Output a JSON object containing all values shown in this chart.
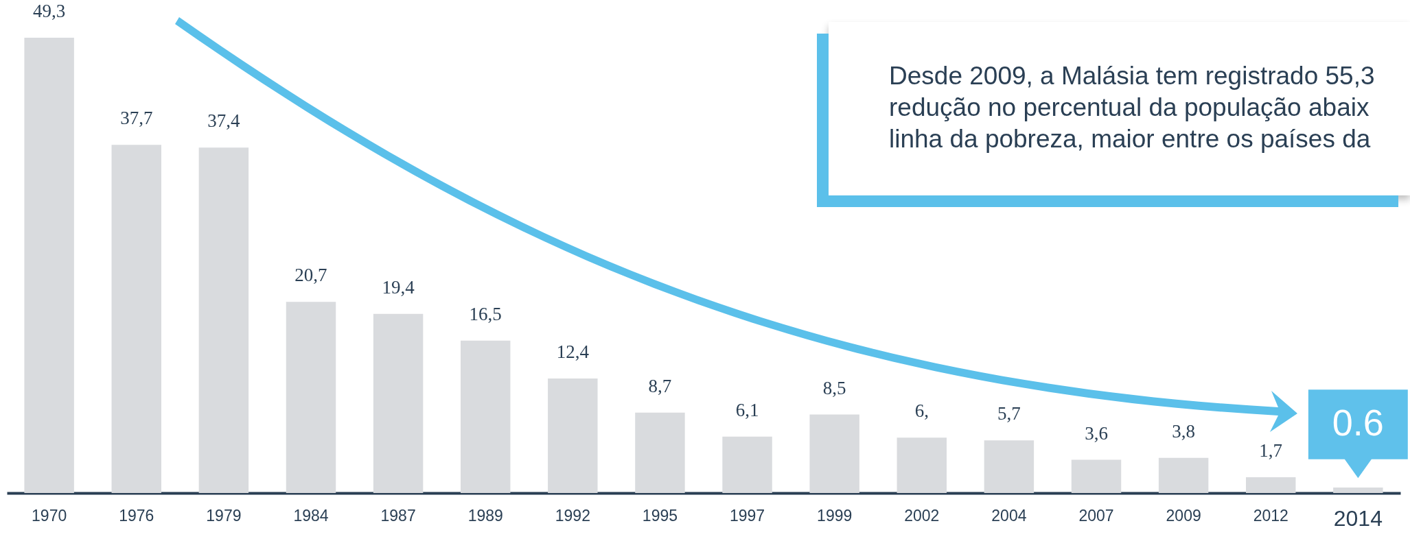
{
  "chart_data": {
    "type": "bar",
    "categories": [
      "1970",
      "1976",
      "1979",
      "1984",
      "1987",
      "1989",
      "1992",
      "1995",
      "1997",
      "1999",
      "2002",
      "2004",
      "2007",
      "2009",
      "2012",
      "2014"
    ],
    "values": [
      49.3,
      37.7,
      37.4,
      20.7,
      19.4,
      16.5,
      12.4,
      8.7,
      6.1,
      8.5,
      6.0,
      5.7,
      3.6,
      3.8,
      1.7,
      0.6
    ],
    "value_labels": [
      "49,3",
      "37,7",
      "37,4",
      "20,7",
      "19,4",
      "16,5",
      "12,4",
      "8,7",
      "6,1",
      "8,5",
      "6,",
      "5,7",
      "3,6",
      "3,8",
      "1,7",
      null
    ],
    "color": "#d9dbde",
    "tick_labels": "x",
    "grid": false,
    "annotations": [
      "Desde 2009, a Malásia tem registrado 55,3\nredução no percentual da população abaix\nlinha da pobreza, maior entre os países da",
      {
        "text": "0.6",
        "x": "2014",
        "y": 0.6
      }
    ]
  }
}
